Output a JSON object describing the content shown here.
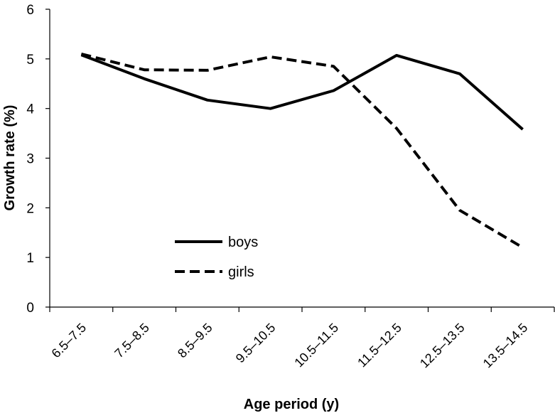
{
  "chart_data": {
    "type": "line",
    "title": "",
    "xlabel": "Age period (y)",
    "ylabel": "Growth rate (%)",
    "categories": [
      "6.5–7.5",
      "7.5–8.5",
      "8.5–9.5",
      "9.5–10.5",
      "10.5–11.5",
      "11.5–12.5",
      "12.5–13.5",
      "13.5–14.5"
    ],
    "yticks": [
      "0",
      "1",
      "2",
      "3",
      "4",
      "5",
      "6"
    ],
    "ylim": [
      0,
      6
    ],
    "grid": false,
    "legend_position": "center-left",
    "series": [
      {
        "name": "boys",
        "style": "solid",
        "color": "#000000",
        "values": [
          5.08,
          4.6,
          4.17,
          4.0,
          4.36,
          5.07,
          4.7,
          3.58
        ]
      },
      {
        "name": "girls",
        "style": "dashed",
        "color": "#000000",
        "values": [
          5.1,
          4.78,
          4.77,
          5.04,
          4.85,
          3.6,
          1.95,
          1.2
        ]
      }
    ]
  }
}
